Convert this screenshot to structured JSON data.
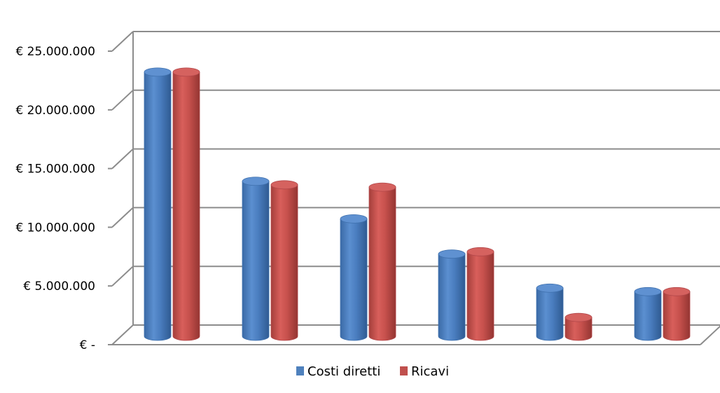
{
  "chart_data": {
    "type": "bar",
    "style": "3d-cylinder",
    "categories": [
      "",
      "",
      "",
      "",
      "",
      ""
    ],
    "series": [
      {
        "name": "Costi diretti",
        "color": "#4f81bd",
        "values": [
          22500000,
          13200000,
          10000000,
          7000000,
          4100000,
          3800000
        ]
      },
      {
        "name": "Ricavi",
        "color": "#c0504d",
        "values": [
          22500000,
          12900000,
          12700000,
          7200000,
          1600000,
          3800000
        ]
      }
    ],
    "ylim": [
      0,
      25000000
    ],
    "yticks": [
      {
        "value": 0,
        "label": "€ -"
      },
      {
        "value": 5000000,
        "label": "€ 5.000.000"
      },
      {
        "value": 10000000,
        "label": "€ 10.000.000"
      },
      {
        "value": 15000000,
        "label": "€ 15.000.000"
      },
      {
        "value": 20000000,
        "label": "€ 20.000.000"
      },
      {
        "value": 25000000,
        "label": "€ 25.000.000"
      }
    ],
    "grid": true,
    "legend_position": "bottom"
  }
}
